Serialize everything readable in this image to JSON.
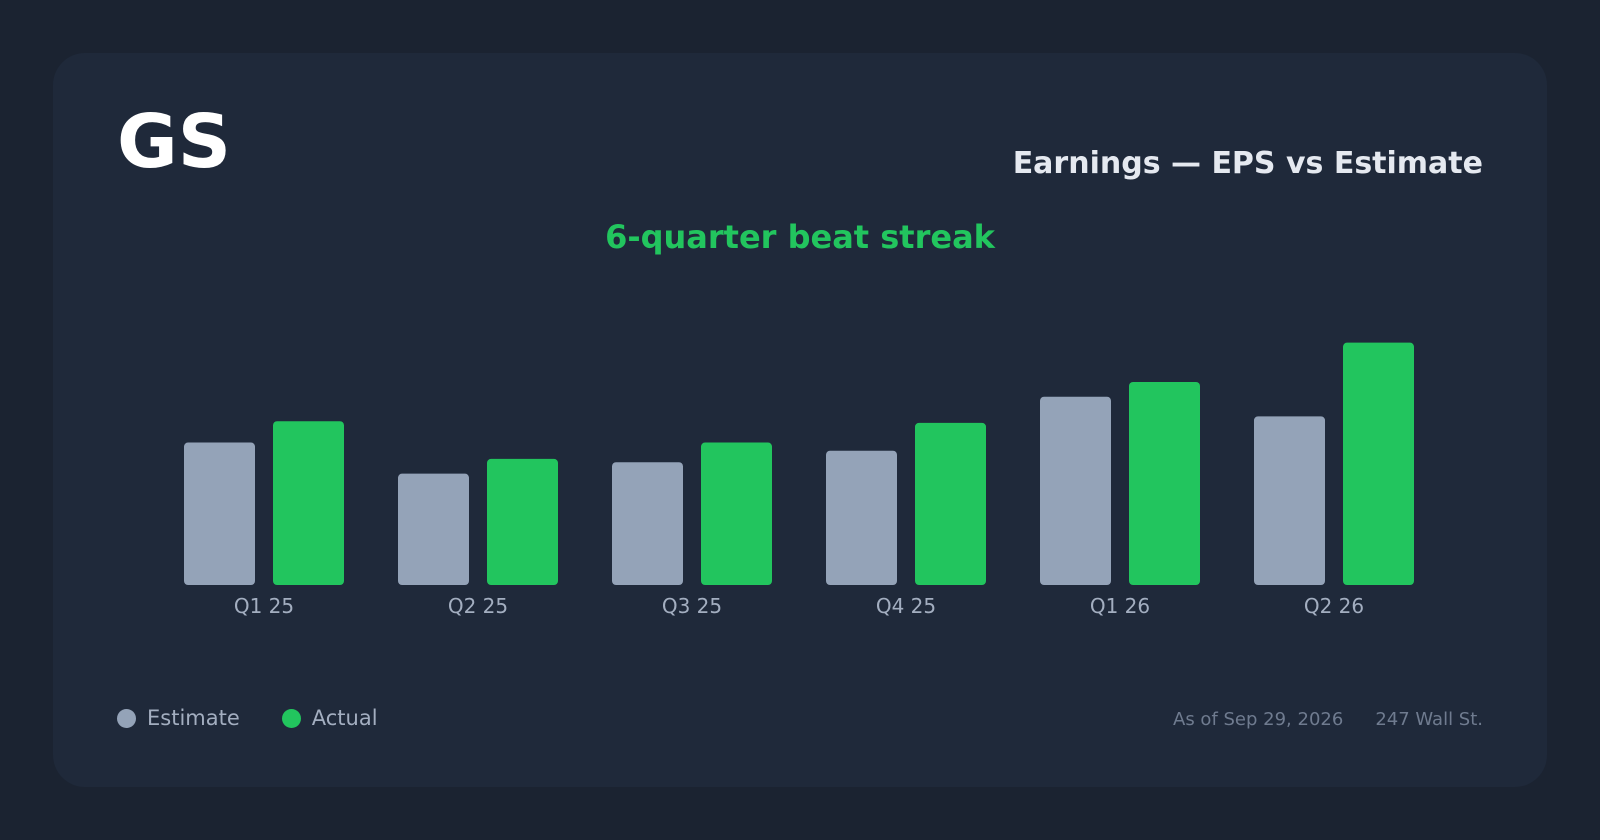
{
  "header": {
    "ticker": "GS",
    "title": "Earnings — EPS vs Estimate",
    "streak": "6-quarter beat streak"
  },
  "colors": {
    "background": "#1b2331",
    "card": "#1f293a",
    "estimate": "#94a3b8",
    "actual": "#22c55e",
    "axis_label": "#a3aec0",
    "footer": "#6f7b8f"
  },
  "chart_data": {
    "type": "bar",
    "categories": [
      "Q1 25",
      "Q2 25",
      "Q3 25",
      "Q4 25",
      "Q1 26",
      "Q2 26"
    ],
    "series": [
      {
        "name": "Estimate",
        "values": [
          8.7,
          6.8,
          7.5,
          8.2,
          11.5,
          10.3
        ]
      },
      {
        "name": "Actual",
        "values": [
          10.0,
          7.7,
          8.7,
          9.9,
          12.4,
          14.8
        ]
      }
    ],
    "ylim": [
      0,
      16
    ],
    "grid": false,
    "legend": "bottom-left"
  },
  "legend": [
    {
      "label": "Estimate",
      "color": "#94a3b8"
    },
    {
      "label": "Actual",
      "color": "#22c55e"
    }
  ],
  "footer": {
    "as_of": "As of Sep 29, 2026",
    "source": "247 Wall St."
  }
}
